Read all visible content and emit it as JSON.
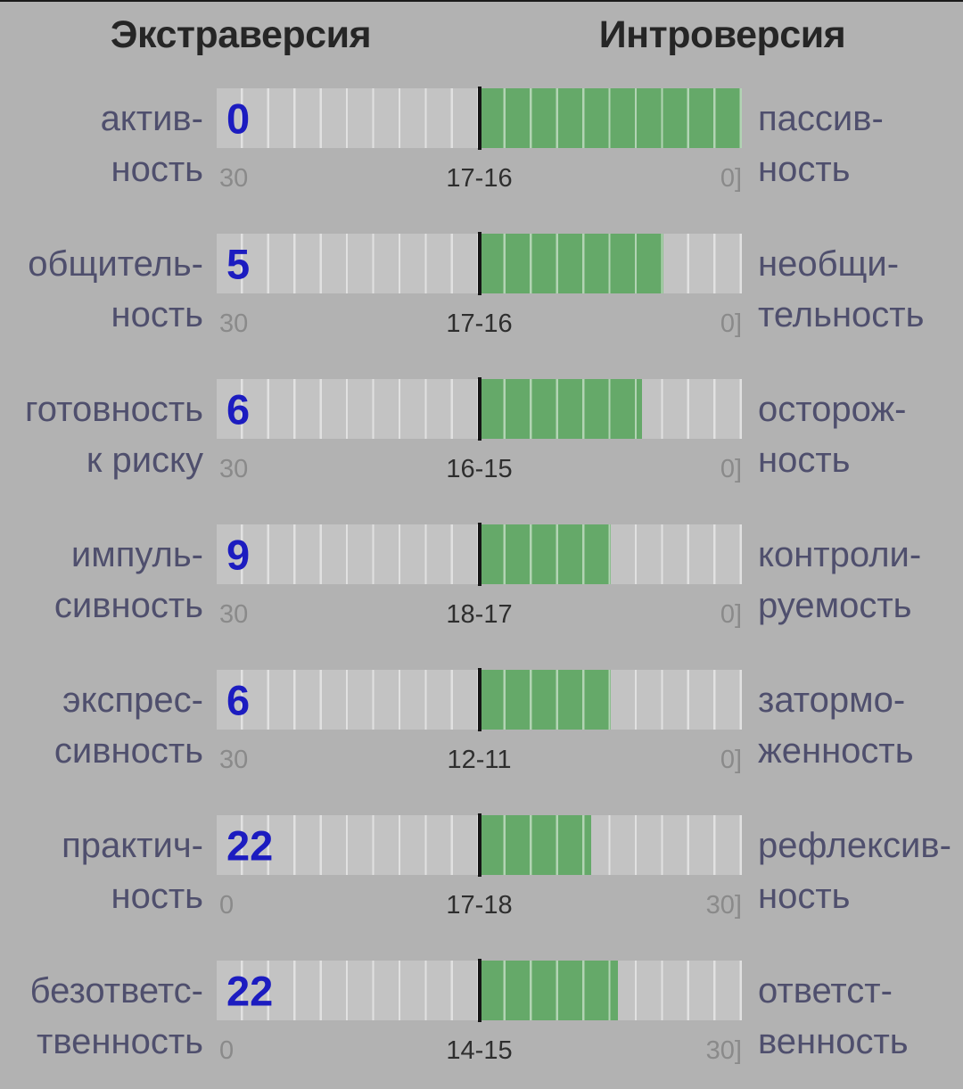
{
  "header": {
    "left": "Экстраверсия",
    "right": "Интроверсия"
  },
  "colors": {
    "background": "#b2b2b2",
    "bar_track": "#c3c3c3",
    "bar_fill": "#65a969",
    "center_divider": "#151515",
    "score_text": "#1c1cc0",
    "trait_label": "#4f4f6d",
    "scale_edge_label": "#8a8a8a",
    "scale_center_label": "#2e2e2e",
    "header_text": "#262626"
  },
  "chart_data": {
    "type": "bar",
    "orientation": "horizontal-diverging-from-center",
    "title_left_pole": "Экстраверсия",
    "title_right_pole": "Интроверсия",
    "segments_per_half": 10,
    "rows": [
      {
        "left_label": [
          "актив-",
          "ность"
        ],
        "score": "0",
        "right_label": [
          "пассив-",
          "ность"
        ],
        "scale_left": "30",
        "center_label": "17-16",
        "scale_right": "0]",
        "fill_fraction": 1.0
      },
      {
        "left_label": [
          "общитель-",
          "ность"
        ],
        "score": "5",
        "right_label": [
          "необщи-",
          "тельность"
        ],
        "scale_left": "30",
        "center_label": "17-16",
        "scale_right": "0]",
        "fill_fraction": 0.7
      },
      {
        "left_label": [
          "готовность",
          "к риску"
        ],
        "score": "6",
        "right_label": [
          "осторож-",
          "ность"
        ],
        "scale_left": "30",
        "center_label": "16-15",
        "scale_right": "0]",
        "fill_fraction": 0.62
      },
      {
        "left_label": [
          "импуль-",
          "сивность"
        ],
        "score": "9",
        "right_label": [
          "контроли-",
          "руемость"
        ],
        "scale_left": "30",
        "center_label": "18-17",
        "scale_right": "0]",
        "fill_fraction": 0.5
      },
      {
        "left_label": [
          "экспрес-",
          "сивность"
        ],
        "score": "6",
        "right_label": [
          "затормо-",
          "женность"
        ],
        "scale_left": "30",
        "center_label": "12-11",
        "scale_right": "0]",
        "fill_fraction": 0.5
      },
      {
        "left_label": [
          "практич-",
          "ность"
        ],
        "score": "22",
        "right_label": [
          "рефлексив-",
          "ность"
        ],
        "scale_left": "0",
        "center_label": "17-18",
        "scale_right": "30]",
        "fill_fraction": 0.425
      },
      {
        "left_label": [
          "безответс-",
          "твенность"
        ],
        "score": "22",
        "right_label": [
          "ответст-",
          "венность"
        ],
        "scale_left": "0",
        "center_label": "14-15",
        "scale_right": "30]",
        "fill_fraction": 0.527
      }
    ]
  }
}
